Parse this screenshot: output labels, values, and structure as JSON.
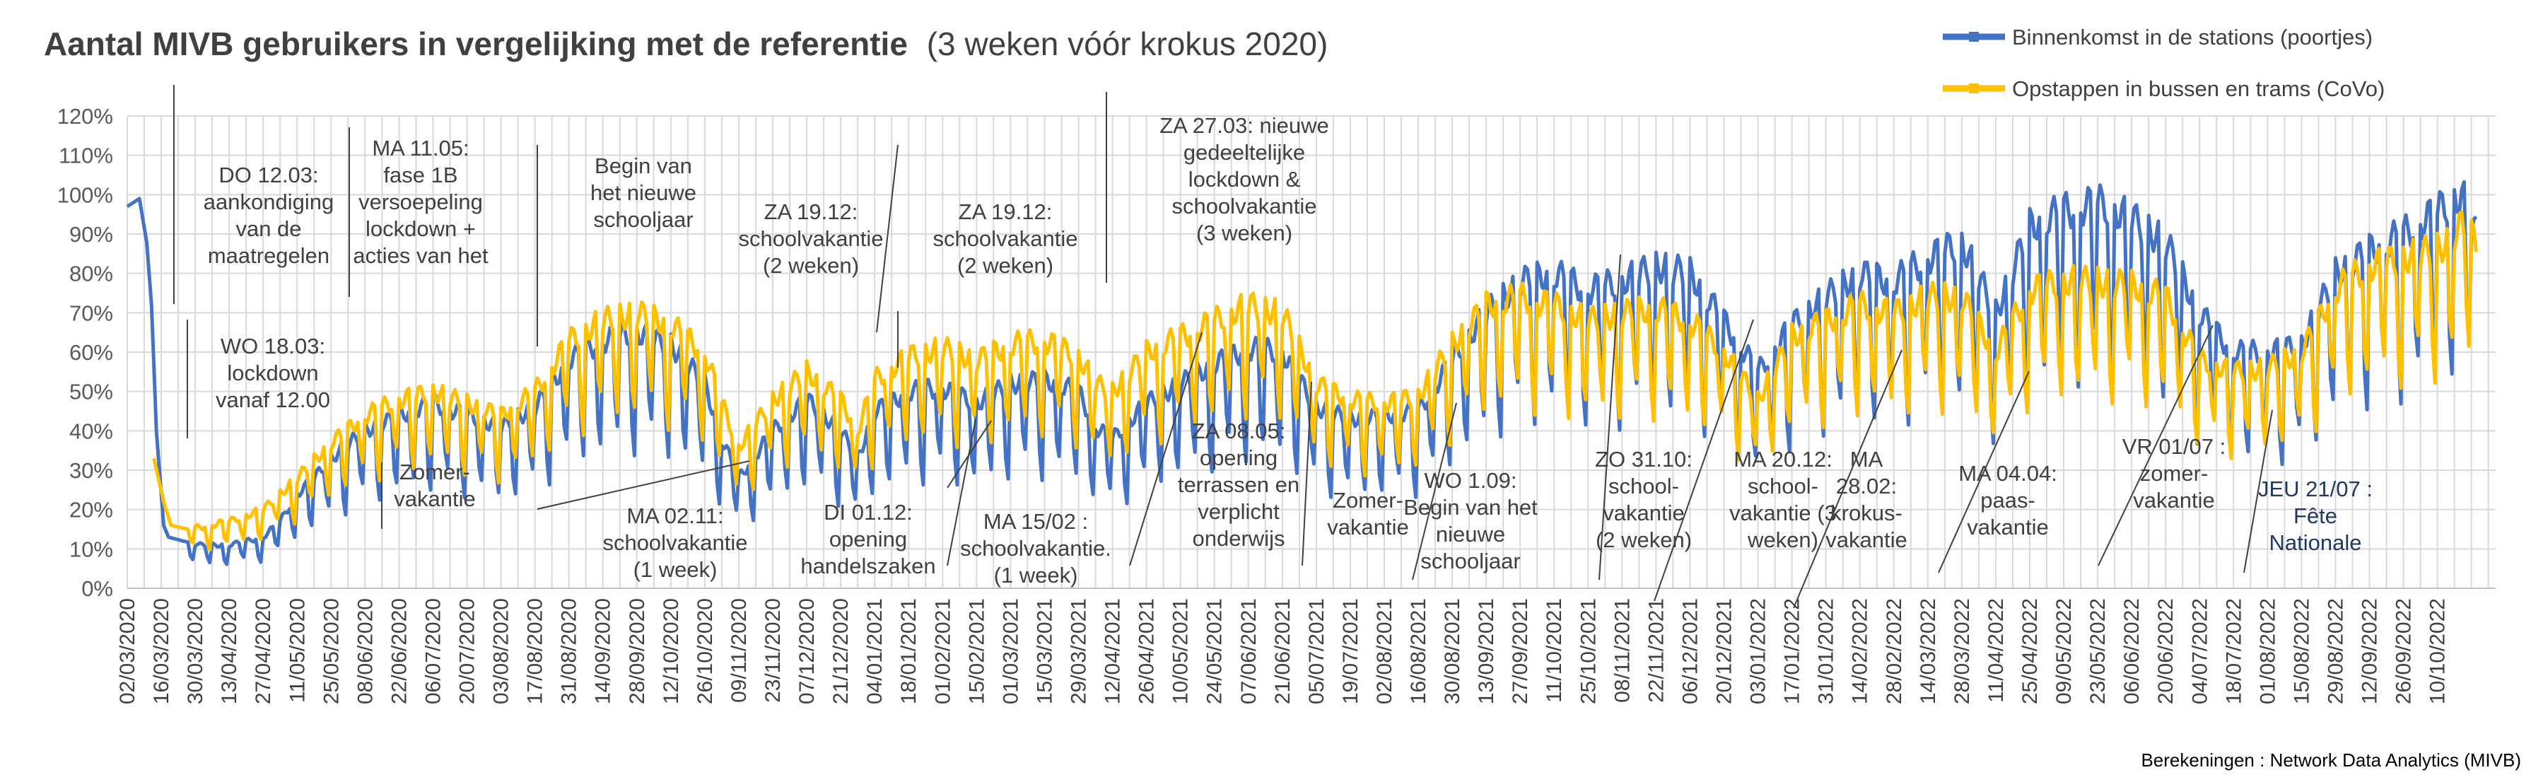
{
  "chart_data": {
    "type": "line",
    "title": "Aantal MIVB gebruikers in vergelijking met de referentie",
    "subtitle": "(3 weken vóór krokus 2020)",
    "xlabel": "",
    "ylabel": "",
    "ylim": [
      0,
      1.2
    ],
    "yticks": [
      "0%",
      "10%",
      "20%",
      "30%",
      "40%",
      "50%",
      "60%",
      "70%",
      "80%",
      "90%",
      "100%",
      "110%",
      "120%"
    ],
    "xticks": [
      "02/03/2020",
      "16/03/2020",
      "30/03/2020",
      "13/04/2020",
      "27/04/2020",
      "11/05/2020",
      "25/05/2020",
      "08/06/2020",
      "22/06/2020",
      "06/07/2020",
      "20/07/2020",
      "03/08/2020",
      "17/08/2020",
      "31/08/2020",
      "14/09/2020",
      "28/09/2020",
      "12/10/2020",
      "26/10/2020",
      "09/11/2020",
      "23/11/2020",
      "07/12/2020",
      "21/12/2020",
      "04/01/2021",
      "18/01/2021",
      "01/02/2021",
      "15/02/2021",
      "01/03/2021",
      "15/03/2021",
      "29/03/2021",
      "12/04/2021",
      "26/04/2021",
      "10/05/2021",
      "24/05/2021",
      "07/06/2021",
      "21/06/2021",
      "05/07/2021",
      "19/07/2021",
      "02/08/2021",
      "16/08/2021",
      "30/08/2021",
      "13/09/2021",
      "27/09/2021",
      "11/10/2021",
      "25/10/2021",
      "08/11/2021",
      "22/11/2021",
      "06/12/2021",
      "20/12/2021",
      "03/01/2022",
      "17/01/2022",
      "31/01/2022",
      "14/02/2022",
      "28/02/2022",
      "14/03/2022",
      "28/03/2022",
      "11/04/2022",
      "25/04/2022",
      "09/05/2022",
      "23/05/2022",
      "06/06/2022",
      "20/06/2022",
      "04/07/2022",
      "18/07/2022",
      "01/08/2022",
      "15/08/2022",
      "29/08/2022",
      "12/09/2022",
      "26/09/2022",
      "10/10/2022"
    ],
    "grid": true,
    "legend_position": "top-right",
    "series": [
      {
        "name": "Binnenkomst in de stations (poortjes)",
        "color": "#4472C4",
        "points": [
          [
            "2020-03-02",
            0.97
          ],
          [
            "2020-03-07",
            0.99
          ],
          [
            "2020-03-10",
            0.88
          ],
          [
            "2020-03-12",
            0.72
          ],
          [
            "2020-03-14",
            0.4
          ],
          [
            "2020-03-17",
            0.16
          ],
          [
            "2020-03-19",
            0.13
          ],
          [
            "2020-03-25",
            0.12
          ],
          [
            "2020-04-01",
            0.11
          ],
          [
            "2020-04-13",
            0.11
          ],
          [
            "2020-04-27",
            0.13
          ],
          [
            "2020-05-04",
            0.17
          ],
          [
            "2020-05-11",
            0.24
          ],
          [
            "2020-05-18",
            0.28
          ],
          [
            "2020-05-25",
            0.33
          ],
          [
            "2020-06-08",
            0.4
          ],
          [
            "2020-06-22",
            0.44
          ],
          [
            "2020-07-06",
            0.47
          ],
          [
            "2020-07-20",
            0.44
          ],
          [
            "2020-08-03",
            0.41
          ],
          [
            "2020-08-17",
            0.46
          ],
          [
            "2020-08-31",
            0.58
          ],
          [
            "2020-09-14",
            0.63
          ],
          [
            "2020-09-28",
            0.65
          ],
          [
            "2020-10-12",
            0.62
          ],
          [
            "2020-10-26",
            0.52
          ],
          [
            "2020-11-02",
            0.38
          ],
          [
            "2020-11-09",
            0.28
          ],
          [
            "2020-11-23",
            0.4
          ],
          [
            "2020-12-07",
            0.48
          ],
          [
            "2020-12-21",
            0.4
          ],
          [
            "2020-12-28",
            0.33
          ],
          [
            "2021-01-04",
            0.45
          ],
          [
            "2021-01-18",
            0.5
          ],
          [
            "2021-02-01",
            0.51
          ],
          [
            "2021-02-15",
            0.47
          ],
          [
            "2021-03-01",
            0.52
          ],
          [
            "2021-03-15",
            0.53
          ],
          [
            "2021-03-29",
            0.5
          ],
          [
            "2021-04-05",
            0.41
          ],
          [
            "2021-04-12",
            0.38
          ],
          [
            "2021-04-26",
            0.47
          ],
          [
            "2021-05-10",
            0.52
          ],
          [
            "2021-05-24",
            0.57
          ],
          [
            "2021-06-07",
            0.61
          ],
          [
            "2021-06-21",
            0.6
          ],
          [
            "2021-07-05",
            0.46
          ],
          [
            "2021-07-19",
            0.43
          ],
          [
            "2021-08-02",
            0.44
          ],
          [
            "2021-08-16",
            0.45
          ],
          [
            "2021-08-30",
            0.58
          ],
          [
            "2021-09-13",
            0.7
          ],
          [
            "2021-09-27",
            0.78
          ],
          [
            "2021-10-11",
            0.8
          ],
          [
            "2021-10-25",
            0.76
          ],
          [
            "2021-11-08",
            0.78
          ],
          [
            "2021-11-22",
            0.82
          ],
          [
            "2021-12-06",
            0.8
          ],
          [
            "2021-12-20",
            0.68
          ],
          [
            "2022-01-03",
            0.55
          ],
          [
            "2022-01-17",
            0.67
          ],
          [
            "2022-01-31",
            0.74
          ],
          [
            "2022-02-14",
            0.8
          ],
          [
            "2022-02-28",
            0.78
          ],
          [
            "2022-03-14",
            0.84
          ],
          [
            "2022-03-28",
            0.88
          ],
          [
            "2022-04-11",
            0.7
          ],
          [
            "2022-04-25",
            0.92
          ],
          [
            "2022-05-09",
            0.96
          ],
          [
            "2022-05-23",
            0.98
          ],
          [
            "2022-06-06",
            0.94
          ],
          [
            "2022-06-20",
            0.88
          ],
          [
            "2022-07-04",
            0.7
          ],
          [
            "2022-07-18",
            0.6
          ],
          [
            "2022-08-01",
            0.6
          ],
          [
            "2022-08-15",
            0.62
          ],
          [
            "2022-08-29",
            0.8
          ],
          [
            "2022-09-12",
            0.86
          ],
          [
            "2022-09-26",
            0.9
          ],
          [
            "2022-10-10",
            0.96
          ],
          [
            "2022-10-20",
            1.0
          ],
          [
            "2022-10-26",
            0.9
          ]
        ]
      },
      {
        "name": "Opstappen in bussen en trams (CoVo)",
        "color": "#FFC000",
        "points": [
          [
            "2020-03-13",
            0.33
          ],
          [
            "2020-03-17",
            0.22
          ],
          [
            "2020-03-20",
            0.16
          ],
          [
            "2020-03-27",
            0.15
          ],
          [
            "2020-04-13",
            0.17
          ],
          [
            "2020-04-27",
            0.2
          ],
          [
            "2020-05-11",
            0.28
          ],
          [
            "2020-05-25",
            0.37
          ],
          [
            "2020-06-08",
            0.44
          ],
          [
            "2020-06-22",
            0.48
          ],
          [
            "2020-07-06",
            0.5
          ],
          [
            "2020-07-20",
            0.47
          ],
          [
            "2020-08-03",
            0.44
          ],
          [
            "2020-08-17",
            0.5
          ],
          [
            "2020-08-31",
            0.63
          ],
          [
            "2020-09-14",
            0.68
          ],
          [
            "2020-09-28",
            0.7
          ],
          [
            "2020-10-12",
            0.67
          ],
          [
            "2020-10-26",
            0.6
          ],
          [
            "2020-11-02",
            0.47
          ],
          [
            "2020-11-09",
            0.36
          ],
          [
            "2020-11-23",
            0.48
          ],
          [
            "2020-12-07",
            0.55
          ],
          [
            "2020-12-21",
            0.48
          ],
          [
            "2020-12-28",
            0.4
          ],
          [
            "2021-01-04",
            0.53
          ],
          [
            "2021-01-18",
            0.59
          ],
          [
            "2021-02-01",
            0.61
          ],
          [
            "2021-02-15",
            0.58
          ],
          [
            "2021-03-01",
            0.62
          ],
          [
            "2021-03-15",
            0.63
          ],
          [
            "2021-03-29",
            0.59
          ],
          [
            "2021-04-05",
            0.52
          ],
          [
            "2021-04-12",
            0.5
          ],
          [
            "2021-04-26",
            0.6
          ],
          [
            "2021-05-10",
            0.64
          ],
          [
            "2021-05-24",
            0.68
          ],
          [
            "2021-06-07",
            0.72
          ],
          [
            "2021-06-21",
            0.7
          ],
          [
            "2021-07-05",
            0.52
          ],
          [
            "2021-07-19",
            0.48
          ],
          [
            "2021-08-02",
            0.47
          ],
          [
            "2021-08-16",
            0.49
          ],
          [
            "2021-08-30",
            0.62
          ],
          [
            "2021-09-13",
            0.72
          ],
          [
            "2021-09-27",
            0.74
          ],
          [
            "2021-10-11",
            0.72
          ],
          [
            "2021-10-25",
            0.68
          ],
          [
            "2021-11-08",
            0.7
          ],
          [
            "2021-11-22",
            0.71
          ],
          [
            "2021-12-06",
            0.68
          ],
          [
            "2021-12-20",
            0.6
          ],
          [
            "2022-01-03",
            0.48
          ],
          [
            "2022-01-17",
            0.64
          ],
          [
            "2022-01-31",
            0.68
          ],
          [
            "2022-02-14",
            0.72
          ],
          [
            "2022-02-28",
            0.7
          ],
          [
            "2022-03-14",
            0.74
          ],
          [
            "2022-03-28",
            0.74
          ],
          [
            "2022-04-11",
            0.6
          ],
          [
            "2022-04-25",
            0.76
          ],
          [
            "2022-05-09",
            0.78
          ],
          [
            "2022-05-23",
            0.78
          ],
          [
            "2022-06-06",
            0.77
          ],
          [
            "2022-06-20",
            0.74
          ],
          [
            "2022-07-04",
            0.58
          ],
          [
            "2022-07-18",
            0.55
          ],
          [
            "2022-08-01",
            0.56
          ],
          [
            "2022-08-15",
            0.6
          ],
          [
            "2022-08-29",
            0.76
          ],
          [
            "2022-09-12",
            0.82
          ],
          [
            "2022-09-26",
            0.84
          ],
          [
            "2022-10-10",
            0.86
          ],
          [
            "2022-10-20",
            0.92
          ],
          [
            "2022-10-26",
            0.88
          ]
        ]
      }
    ],
    "annotations": [
      {
        "lines": [
          "DO 12.03:",
          "aankondiging",
          "van de",
          "maatregelen"
        ],
        "date": "2020-03-12"
      },
      {
        "lines": [
          "WO 18.03:",
          "lockdown",
          "vanaf 12.00"
        ],
        "date": "2020-03-18"
      },
      {
        "lines": [
          "MA 11.05:",
          "fase 1B",
          "versoepeling",
          "lockdown +",
          "acties van het"
        ],
        "date": "2020-05-11"
      },
      {
        "lines": [
          "Zomer-",
          "vakantie"
        ],
        "date": "2020-07-01"
      },
      {
        "lines": [
          "Begin van",
          "het nieuwe",
          "schooljaar"
        ],
        "date": "2020-09-01"
      },
      {
        "lines": [
          "MA 02.11:",
          "schoolvakantie",
          "(1 week)"
        ],
        "date": "2020-11-02"
      },
      {
        "lines": [
          "ZA 19.12:",
          "schoolvakantie",
          "(2 weken)"
        ],
        "date": "2020-12-19"
      },
      {
        "lines": [
          "ZA 19.12:",
          "schoolvakantie",
          "(2 weken)"
        ],
        "date": "2020-12-19"
      },
      {
        "lines": [
          "DI 01.12:",
          "opening",
          "handelszaken"
        ],
        "date": "2020-12-01"
      },
      {
        "lines": [
          "MA 15/02 :",
          "schoolvakantie.",
          "(1 week)"
        ],
        "date": "2021-02-15"
      },
      {
        "lines": [
          "ZA 27.03: nieuwe",
          "gedeeltelijke",
          "lockdown &",
          "schoolvakantie",
          "(3 weken)"
        ],
        "date": "2021-03-27"
      },
      {
        "lines": [
          "ZA 08.05:",
          "opening",
          "terrassen en",
          "verplicht",
          "onderwijs"
        ],
        "date": "2021-05-08"
      },
      {
        "lines": [
          "Zomer-",
          "vakantie"
        ],
        "date": "2021-07-01"
      },
      {
        "lines": [
          "WO 1.09:",
          "Begin van het",
          "nieuwe",
          "schooljaar"
        ],
        "date": "2021-09-01"
      },
      {
        "lines": [
          "ZO 31.10:",
          "school-",
          "vakantie",
          "(2 weken)"
        ],
        "date": "2021-10-31"
      },
      {
        "lines": [
          "MA 20.12:",
          "school-",
          "vakantie (3",
          "weken)"
        ],
        "date": "2021-12-20"
      },
      {
        "lines": [
          "MA",
          "28.02:",
          "krokus-",
          "vakantie"
        ],
        "date": "2022-02-28"
      },
      {
        "lines": [
          "MA 04.04:",
          "paas-",
          "vakantie"
        ],
        "date": "2022-04-04"
      },
      {
        "lines": [
          "VR 01/07 :",
          "zomer-",
          "vakantie"
        ],
        "date": "2022-07-01"
      },
      {
        "lines": [
          "JEU 21/07 :",
          "Fête",
          "Nationale"
        ],
        "date": "2022-07-21"
      }
    ],
    "footnote": "Berekeningen :  Network Data Analytics (MIVB)"
  }
}
